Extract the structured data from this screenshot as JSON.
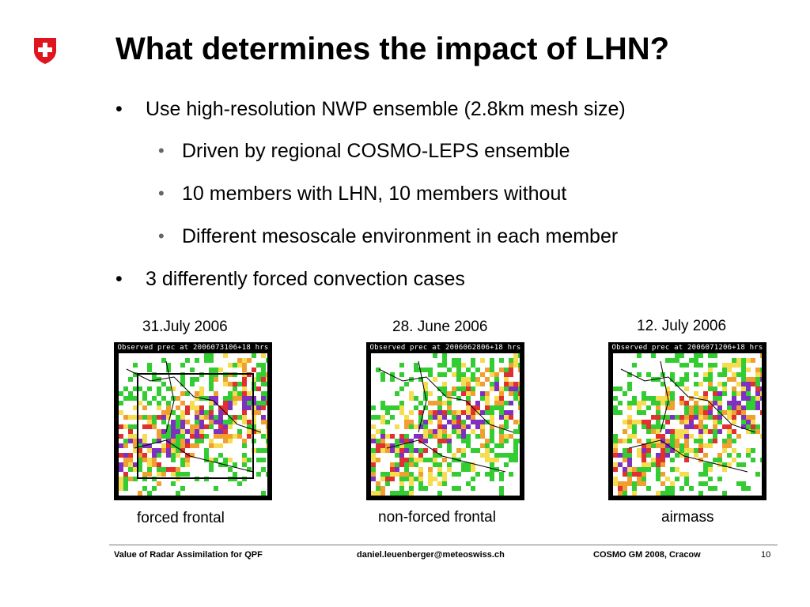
{
  "title": "What determines the impact of LHN?",
  "bullets": [
    {
      "text": "Use high-resolution NWP ensemble (2.8km mesh size)",
      "marker": "•"
    },
    {
      "text": "Driven by regional COSMO-LEPS ensemble",
      "marker": "•"
    },
    {
      "text": "10 members with LHN, 10 members without",
      "marker": "•"
    },
    {
      "text": "Different mesoscale environment in each member",
      "marker": "•"
    },
    {
      "text": "3 differently forced convection cases",
      "marker": "•"
    }
  ],
  "cases": [
    {
      "date": "31.July 2006",
      "map_title": "Observed prec at 2006073106+18 hrs",
      "label": "forced frontal"
    },
    {
      "date": "28. June 2006",
      "map_title": "Observed prec at 2006062806+18 hrs",
      "label": "non-forced frontal"
    },
    {
      "date": "12. July 2006",
      "map_title": "Observed prec at 2006071206+18 hrs",
      "label": "airmass"
    }
  ],
  "footer": {
    "left": "Value of Radar Assimilation for QPF",
    "center": "daniel.leuenberger@meteoswiss.ch",
    "right": "COSMO GM 2008, Cracow",
    "page": "10"
  },
  "colors": {
    "swiss_red": "#e0141e",
    "precip_green": "#33cc33",
    "precip_yellow": "#f5dc50",
    "precip_orange": "#f0a030",
    "precip_red": "#e03030",
    "precip_purple": "#8030c0"
  }
}
